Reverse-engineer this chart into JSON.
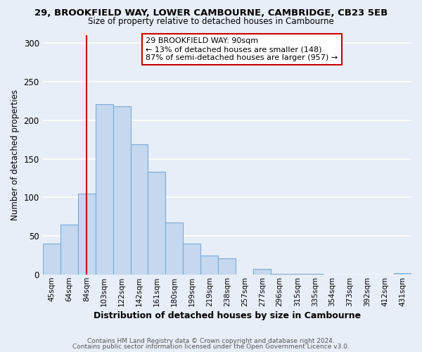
{
  "title1": "29, BROOKFIELD WAY, LOWER CAMBOURNE, CAMBRIDGE, CB23 5EB",
  "title2": "Size of property relative to detached houses in Cambourne",
  "xlabel": "Distribution of detached houses by size in Cambourne",
  "ylabel": "Number of detached properties",
  "bar_labels": [
    "45sqm",
    "64sqm",
    "84sqm",
    "103sqm",
    "122sqm",
    "142sqm",
    "161sqm",
    "180sqm",
    "199sqm",
    "219sqm",
    "238sqm",
    "257sqm",
    "277sqm",
    "296sqm",
    "315sqm",
    "335sqm",
    "354sqm",
    "373sqm",
    "392sqm",
    "412sqm",
    "431sqm"
  ],
  "bar_values": [
    40,
    65,
    105,
    221,
    218,
    169,
    133,
    68,
    40,
    25,
    21,
    0,
    7,
    1,
    1,
    1,
    0,
    0,
    0,
    0,
    2
  ],
  "bar_color": "#c5d8f0",
  "bar_edge_color": "#7aaad4",
  "vline_x_index": 2,
  "vline_color": "#cc0000",
  "ylim": [
    0,
    310
  ],
  "yticks": [
    0,
    50,
    100,
    150,
    200,
    250,
    300
  ],
  "annotation_title": "29 BROOKFIELD WAY: 90sqm",
  "annotation_line1": "← 13% of detached houses are smaller (148)",
  "annotation_line2": "87% of semi-detached houses are larger (957) →",
  "annotation_box_facecolor": "#ffffff",
  "annotation_box_edgecolor": "#cc0000",
  "footer1": "Contains HM Land Registry data © Crown copyright and database right 2024.",
  "footer2": "Contains public sector information licensed under the Open Government Licence v3.0.",
  "background_color": "#e8eef7",
  "grid_color": "#ffffff",
  "title1_fontsize": 9.5,
  "title2_fontsize": 8.5,
  "xlabel_fontsize": 9,
  "ylabel_fontsize": 8.5,
  "tick_fontsize": 7.5,
  "footer_fontsize": 6.5,
  "ann_fontsize": 8
}
